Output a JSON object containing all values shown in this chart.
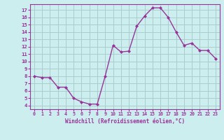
{
  "x": [
    0,
    1,
    2,
    3,
    4,
    5,
    6,
    7,
    8,
    9,
    10,
    11,
    12,
    13,
    14,
    15,
    16,
    17,
    18,
    19,
    20,
    21,
    22,
    23
  ],
  "y": [
    8.0,
    7.8,
    7.8,
    6.5,
    6.5,
    5.0,
    4.5,
    4.2,
    4.2,
    8.0,
    12.2,
    11.3,
    11.4,
    14.8,
    16.2,
    17.3,
    17.3,
    16.0,
    14.0,
    12.2,
    12.5,
    11.5,
    11.5,
    10.4
  ],
  "line_color": "#993399",
  "marker_color": "#993399",
  "bg_color": "#cceeee",
  "grid_color": "#aacccc",
  "xlabel": "Windchill (Refroidissement éolien,°C)",
  "ylabel": "",
  "xlim": [
    -0.5,
    23.5
  ],
  "ylim": [
    3.5,
    17.8
  ],
  "xticks": [
    0,
    1,
    2,
    3,
    4,
    5,
    6,
    7,
    8,
    9,
    10,
    11,
    12,
    13,
    14,
    15,
    16,
    17,
    18,
    19,
    20,
    21,
    22,
    23
  ],
  "yticks": [
    4,
    5,
    6,
    7,
    8,
    9,
    10,
    11,
    12,
    13,
    14,
    15,
    16,
    17
  ],
  "tick_color": "#993399",
  "label_color": "#993399",
  "spine_color": "#993399"
}
